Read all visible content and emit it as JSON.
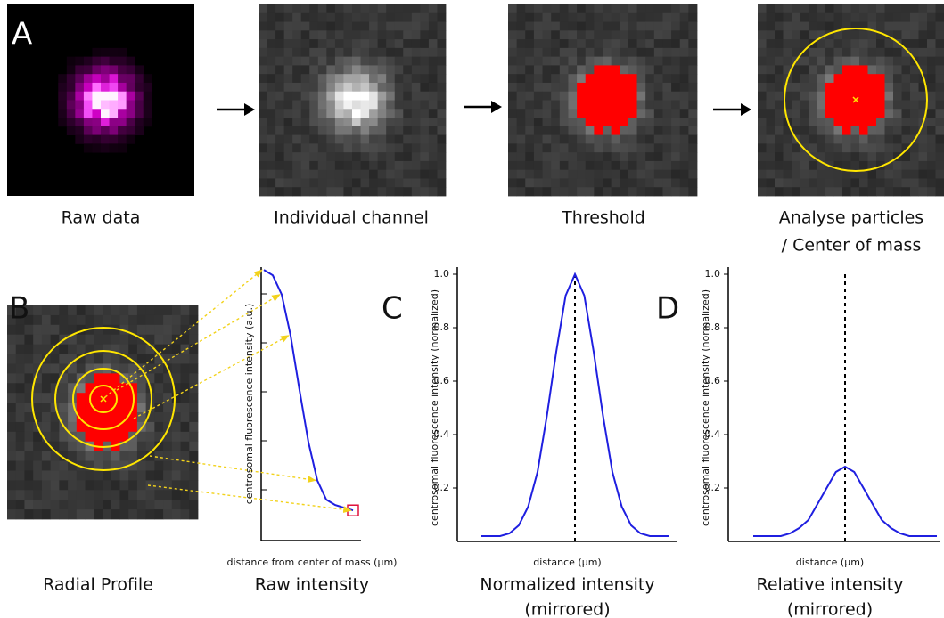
{
  "panels": {
    "a": {
      "letter": "A",
      "steps": [
        "Raw data",
        "Individual channel",
        "Threshold",
        [
          "Analyse particles",
          "/ Center of mass"
        ]
      ]
    },
    "b": {
      "letter": "B",
      "image_label": "Radial Profile"
    }
  },
  "chart_data": [
    {
      "type": "line",
      "panel": null,
      "title": "Raw intensity",
      "xlabel": "distance from center of mass (µm)",
      "ylabel": "centrosomal fluorescence intensity (a.u.)",
      "values": [
        0.99,
        0.97,
        0.9,
        0.75,
        0.55,
        0.36,
        0.22,
        0.15,
        0.13,
        0.12,
        0.11
      ],
      "color": "#1f1fe0",
      "ylim": [
        0,
        1
      ]
    },
    {
      "type": "line",
      "panel": "C",
      "title": "Normalized intensity",
      "subtitle": "(mirrored)",
      "xlabel": "distance (µm)",
      "ylabel": "centrosomal fluorescence intensity (normalized)",
      "values": [
        0.02,
        0.02,
        0.02,
        0.03,
        0.06,
        0.13,
        0.26,
        0.47,
        0.71,
        0.92,
        1.0,
        0.92,
        0.71,
        0.47,
        0.26,
        0.13,
        0.06,
        0.03,
        0.02,
        0.02,
        0.02
      ],
      "color": "#1f1fe0",
      "ylim": [
        0,
        1
      ],
      "yticks": [
        0.2,
        0.4,
        0.6,
        0.8,
        {
          "value": 1,
          "label": "1.0"
        }
      ]
    },
    {
      "type": "line",
      "panel": "D",
      "title": "Relative intensity",
      "subtitle": "(mirrored)",
      "xlabel": "distance (µm)",
      "ylabel": "centrosomal fluorescence intensity (normalized)",
      "values": [
        0.02,
        0.02,
        0.02,
        0.02,
        0.03,
        0.05,
        0.08,
        0.14,
        0.2,
        0.26,
        0.28,
        0.26,
        0.2,
        0.14,
        0.08,
        0.05,
        0.03,
        0.02,
        0.02,
        0.02,
        0.02
      ],
      "color": "#1f1fe0",
      "ylim": [
        0,
        1
      ],
      "yticks": [
        0.2,
        0.4,
        0.6,
        0.8,
        {
          "value": 1,
          "label": "1.0"
        }
      ]
    }
  ]
}
